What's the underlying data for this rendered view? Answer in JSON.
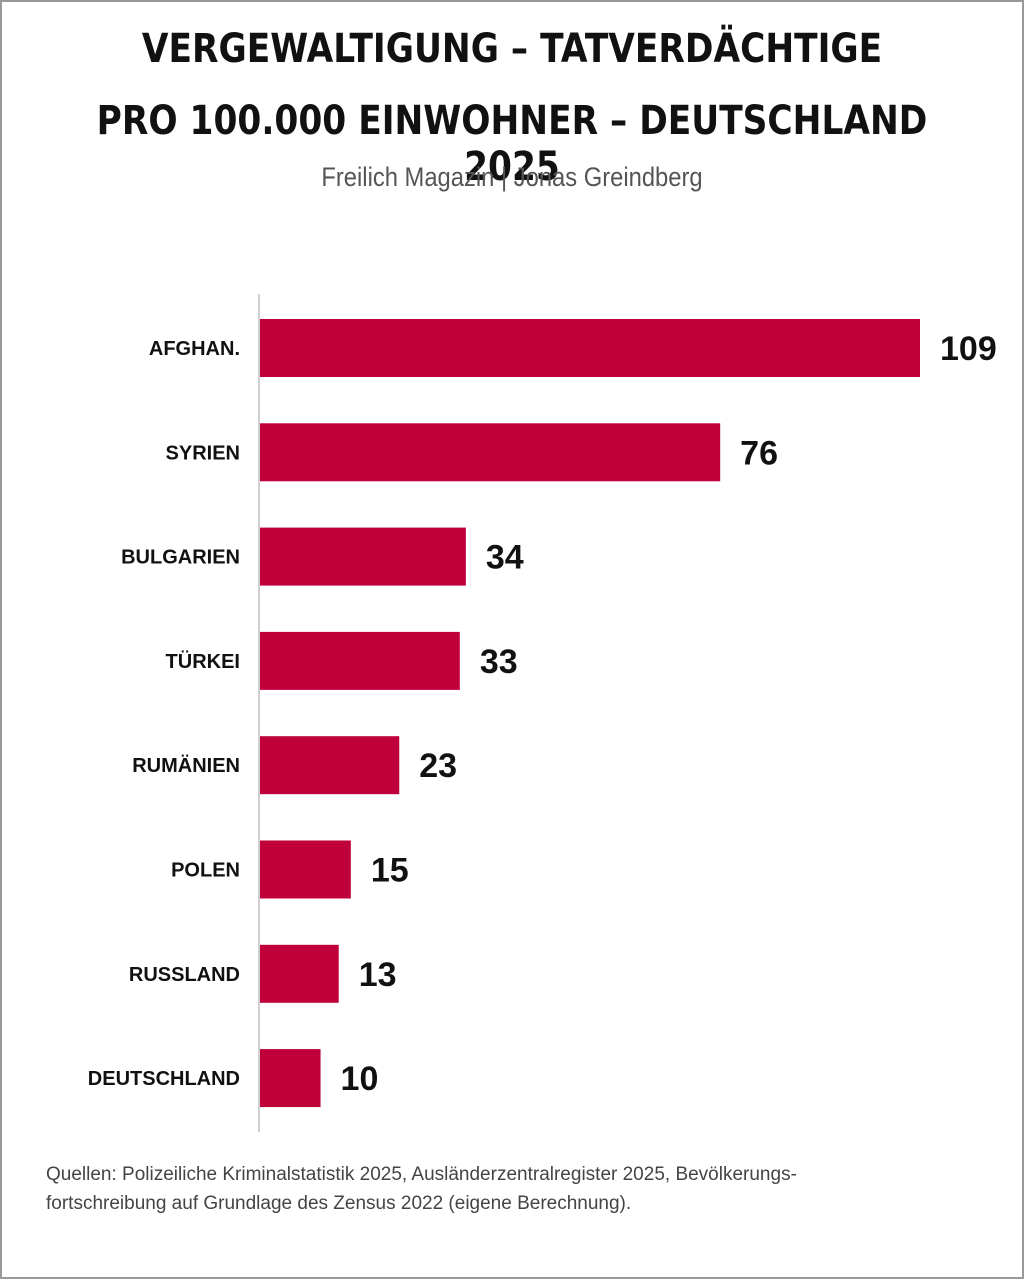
{
  "header": {
    "title_line1": "VERGEWALTIGUNG – TATVERDÄCHTIGE",
    "title_line2": "PRO 100.000 EINWOHNER – DEUTSCHLAND 2025",
    "subtitle": "Freilich Magazin | Jonas Greindberg"
  },
  "chart_data": {
    "type": "bar",
    "orientation": "horizontal",
    "categories": [
      "AFGHAN.",
      "SYRIEN",
      "BULGARIEN",
      "TÜRKEI",
      "RUMÄNIEN",
      "POLEN",
      "RUSSLAND",
      "DEUTSCHLAND"
    ],
    "values": [
      109,
      76,
      34,
      33,
      23,
      15,
      13,
      10
    ],
    "data_labels": [
      "109",
      "76",
      "34",
      "33",
      "23",
      "15",
      "13",
      "10"
    ],
    "xlim": [
      0,
      109
    ],
    "grid": false,
    "legend": "none",
    "bar_color": "#c0003a",
    "axis_color": "#d0d0d0"
  },
  "footer": {
    "source_line1": "Quellen: Polizeiliche Kriminalstatistik 2025, Ausländerzentralregister 2025, Bevölkerungs-",
    "source_line2": "fortschreibung auf Grundlage des Zensus 2022 (eigene Berechnung)."
  }
}
